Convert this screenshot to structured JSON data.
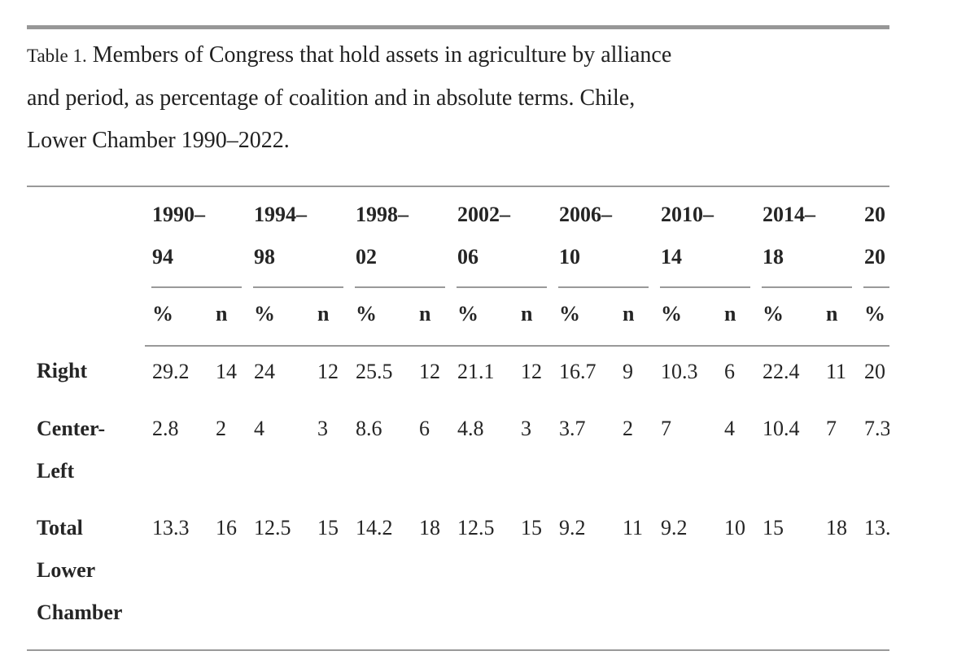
{
  "caption": {
    "label": "Table 1.",
    "line1": "Members of Congress that hold assets in agriculture by alliance",
    "line2": "and period, as percentage of coalition and in absolute terms. Chile,",
    "line3": "Lower Chamber 1990–2022."
  },
  "table": {
    "col_headers": {
      "pct": "%",
      "n": "n"
    },
    "groups": [
      {
        "line1": "1990–",
        "line2": "94"
      },
      {
        "line1": "1994–",
        "line2": "98"
      },
      {
        "line1": "1998–",
        "line2": "02"
      },
      {
        "line1": "2002–",
        "line2": "06"
      },
      {
        "line1": "2006–",
        "line2": "10"
      },
      {
        "line1": "2010–",
        "line2": "14"
      },
      {
        "line1": "2014–",
        "line2": "18"
      },
      {
        "line1": "20",
        "line2": "20"
      }
    ],
    "rows": [
      {
        "label_lines": [
          "Right"
        ],
        "values": [
          "29.2",
          "14",
          "24",
          "12",
          "25.5",
          "12",
          "21.1",
          "12",
          "16.7",
          "9",
          "10.3",
          "6",
          "22.4",
          "11",
          "20"
        ]
      },
      {
        "label_lines": [
          "Center-",
          "Left"
        ],
        "values": [
          "2.8",
          "2",
          "4",
          "3",
          "8.6",
          "6",
          "4.8",
          "3",
          "3.7",
          "2",
          "7",
          "4",
          "10.4",
          "7",
          "7.3"
        ]
      },
      {
        "label_lines": [
          "Total",
          "Lower",
          "Chamber"
        ],
        "values": [
          "13.3",
          "16",
          "12.5",
          "15",
          "14.2",
          "18",
          "12.5",
          "15",
          "9.2",
          "11",
          "9.2",
          "10",
          "15",
          "18",
          "13."
        ]
      }
    ]
  }
}
